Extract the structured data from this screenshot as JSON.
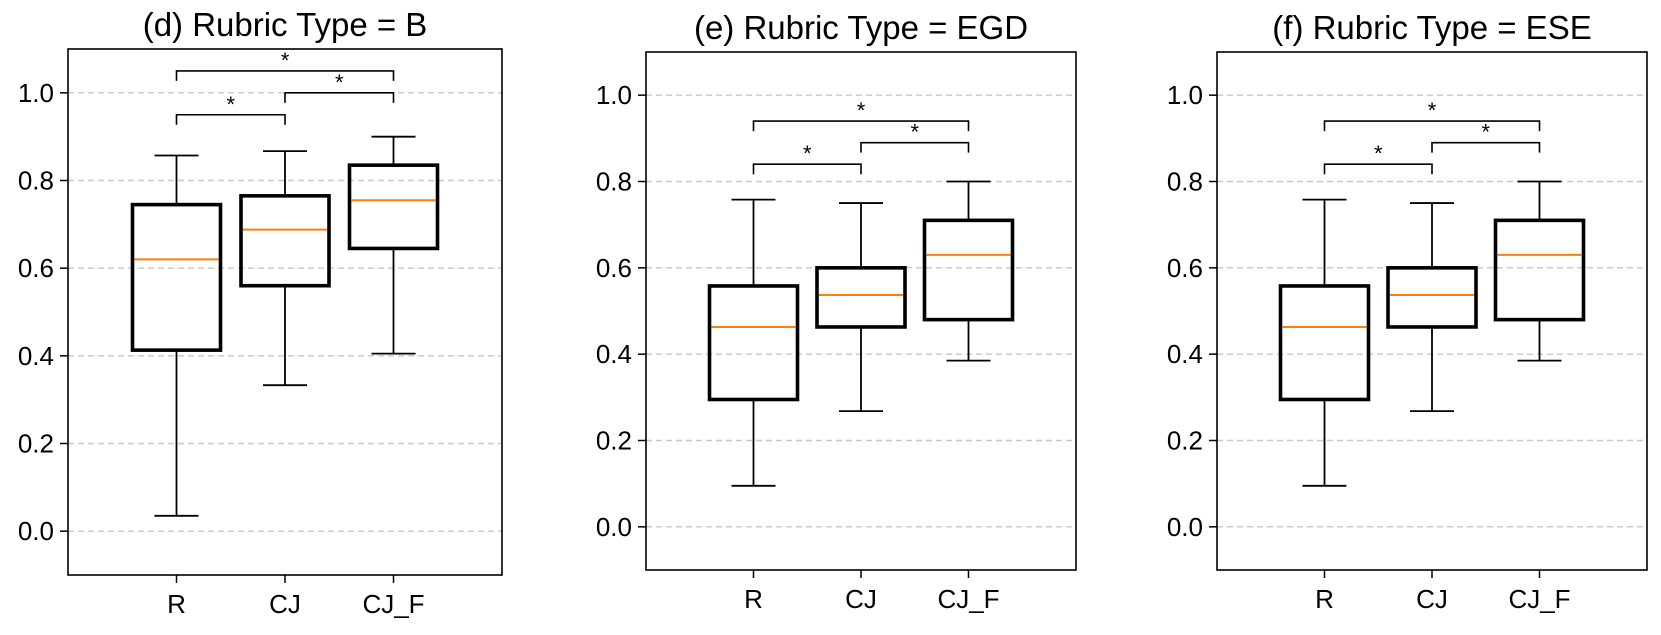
{
  "colors": {
    "median": "#ff7f0e",
    "box": "#000000",
    "grid": "#c8c8c8",
    "background": "#ffffff"
  },
  "chart_data": [
    {
      "type": "boxplot",
      "title": "(d) Rubric Type = B",
      "categories": [
        "R",
        "CJ",
        "CJ_F"
      ],
      "ylim": [
        -0.1,
        1.1
      ],
      "yticks": [
        "0.0",
        "0.2",
        "0.4",
        "0.6",
        "0.8",
        "1.0"
      ],
      "grid": "horizontal dashed",
      "boxes": [
        {
          "category": "R",
          "whisker_low": 0.035,
          "q1": 0.413,
          "median": 0.62,
          "q3": 0.745,
          "whisker_high": 0.857
        },
        {
          "category": "CJ",
          "whisker_low": 0.333,
          "q1": 0.56,
          "median": 0.688,
          "q3": 0.765,
          "whisker_high": 0.867
        },
        {
          "category": "CJ_F",
          "whisker_low": 0.405,
          "q1": 0.645,
          "median": 0.755,
          "q3": 0.835,
          "whisker_high": 0.9
        }
      ],
      "significance": [
        {
          "from": "R",
          "to": "CJ",
          "y": 0.95,
          "label": "*"
        },
        {
          "from": "CJ",
          "to": "CJ_F",
          "y": 1.0,
          "label": "*"
        },
        {
          "from": "R",
          "to": "CJ_F",
          "y": 1.05,
          "label": "*"
        }
      ]
    },
    {
      "type": "boxplot",
      "title": "(e) Rubric Type = EGD",
      "categories": [
        "R",
        "CJ",
        "CJ_F"
      ],
      "ylim": [
        -0.1,
        1.1
      ],
      "yticks": [
        "0.0",
        "0.2",
        "0.4",
        "0.6",
        "0.8",
        "1.0"
      ],
      "grid": "horizontal dashed",
      "boxes": [
        {
          "category": "R",
          "whisker_low": 0.095,
          "q1": 0.295,
          "median": 0.463,
          "q3": 0.558,
          "whisker_high": 0.758
        },
        {
          "category": "CJ",
          "whisker_low": 0.268,
          "q1": 0.463,
          "median": 0.537,
          "q3": 0.6,
          "whisker_high": 0.75
        },
        {
          "category": "CJ_F",
          "whisker_low": 0.385,
          "q1": 0.48,
          "median": 0.63,
          "q3": 0.71,
          "whisker_high": 0.8
        }
      ],
      "significance": [
        {
          "from": "R",
          "to": "CJ",
          "y": 0.84,
          "label": "*"
        },
        {
          "from": "CJ",
          "to": "CJ_F",
          "y": 0.89,
          "label": "*"
        },
        {
          "from": "R",
          "to": "CJ_F",
          "y": 0.94,
          "label": "*"
        }
      ]
    },
    {
      "type": "boxplot",
      "title": "(f) Rubric Type = ESE",
      "categories": [
        "R",
        "CJ",
        "CJ_F"
      ],
      "ylim": [
        -0.1,
        1.1
      ],
      "yticks": [
        "0.0",
        "0.2",
        "0.4",
        "0.6",
        "0.8",
        "1.0"
      ],
      "grid": "horizontal dashed",
      "boxes": [
        {
          "category": "R",
          "whisker_low": 0.095,
          "q1": 0.295,
          "median": 0.463,
          "q3": 0.558,
          "whisker_high": 0.758
        },
        {
          "category": "CJ",
          "whisker_low": 0.268,
          "q1": 0.463,
          "median": 0.537,
          "q3": 0.6,
          "whisker_high": 0.75
        },
        {
          "category": "CJ_F",
          "whisker_low": 0.385,
          "q1": 0.48,
          "median": 0.63,
          "q3": 0.71,
          "whisker_high": 0.8
        }
      ],
      "significance": [
        {
          "from": "R",
          "to": "CJ",
          "y": 0.84,
          "label": "*"
        },
        {
          "from": "CJ",
          "to": "CJ_F",
          "y": 0.89,
          "label": "*"
        },
        {
          "from": "R",
          "to": "CJ_F",
          "y": 0.94,
          "label": "*"
        }
      ]
    }
  ]
}
